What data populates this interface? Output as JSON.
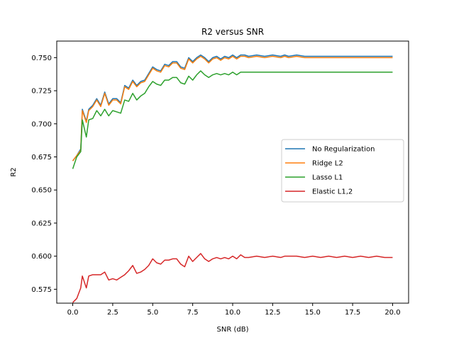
{
  "chart_data": {
    "type": "line",
    "title": "R2 versus SNR",
    "xlabel": "SNR (dB)",
    "ylabel": "R2",
    "xlim": [
      -1.0,
      21.0
    ],
    "ylim": [
      0.5645,
      0.7625
    ],
    "xticks": [
      0.0,
      2.5,
      5.0,
      7.5,
      10.0,
      12.5,
      15.0,
      17.5,
      20.0
    ],
    "xtick_labels": [
      "0.0",
      "2.5",
      "5.0",
      "7.5",
      "10.0",
      "12.5",
      "15.0",
      "17.5",
      "20.0"
    ],
    "yticks": [
      0.575,
      0.6,
      0.625,
      0.65,
      0.675,
      0.7,
      0.725,
      0.75
    ],
    "ytick_labels": [
      "0.575",
      "0.600",
      "0.625",
      "0.650",
      "0.675",
      "0.700",
      "0.725",
      "0.750"
    ],
    "legend_position": "center-right",
    "x": [
      0.0,
      0.25,
      0.5,
      0.6,
      0.85,
      1.0,
      1.25,
      1.5,
      1.75,
      2.0,
      2.25,
      2.5,
      2.75,
      3.0,
      3.25,
      3.5,
      3.75,
      4.0,
      4.25,
      4.5,
      4.75,
      5.0,
      5.25,
      5.5,
      5.75,
      6.0,
      6.25,
      6.5,
      6.75,
      7.0,
      7.25,
      7.5,
      7.75,
      8.0,
      8.25,
      8.5,
      8.75,
      9.0,
      9.25,
      9.5,
      9.75,
      10.0,
      10.25,
      10.5,
      10.75,
      11.0,
      11.5,
      12.0,
      12.5,
      13.0,
      13.25,
      13.5,
      14.0,
      14.5,
      15.0,
      15.5,
      16.0,
      16.5,
      17.0,
      17.5,
      18.0,
      18.5,
      19.0,
      19.5,
      20.0
    ],
    "series": [
      {
        "name": "No Regularization",
        "color": "#1f77b4",
        "values": [
          0.672,
          0.676,
          0.681,
          0.711,
          0.702,
          0.711,
          0.714,
          0.719,
          0.714,
          0.724,
          0.715,
          0.719,
          0.719,
          0.716,
          0.729,
          0.727,
          0.733,
          0.729,
          0.732,
          0.733,
          0.738,
          0.743,
          0.741,
          0.74,
          0.745,
          0.744,
          0.747,
          0.747,
          0.743,
          0.742,
          0.75,
          0.747,
          0.75,
          0.752,
          0.75,
          0.747,
          0.75,
          0.751,
          0.749,
          0.751,
          0.75,
          0.752,
          0.75,
          0.752,
          0.752,
          0.751,
          0.752,
          0.751,
          0.752,
          0.751,
          0.752,
          0.751,
          0.752,
          0.751,
          0.751,
          0.751,
          0.751,
          0.751,
          0.751,
          0.751,
          0.751,
          0.751,
          0.751,
          0.751,
          0.751
        ]
      },
      {
        "name": "Ridge L2",
        "color": "#ff7f0e",
        "values": [
          0.672,
          0.676,
          0.68,
          0.71,
          0.701,
          0.71,
          0.713,
          0.718,
          0.713,
          0.723,
          0.714,
          0.718,
          0.718,
          0.715,
          0.728,
          0.726,
          0.732,
          0.728,
          0.731,
          0.732,
          0.737,
          0.742,
          0.74,
          0.739,
          0.744,
          0.743,
          0.746,
          0.746,
          0.742,
          0.741,
          0.749,
          0.746,
          0.749,
          0.751,
          0.749,
          0.746,
          0.749,
          0.75,
          0.748,
          0.75,
          0.749,
          0.751,
          0.749,
          0.751,
          0.751,
          0.75,
          0.751,
          0.75,
          0.751,
          0.75,
          0.751,
          0.75,
          0.751,
          0.75,
          0.75,
          0.75,
          0.75,
          0.75,
          0.75,
          0.75,
          0.75,
          0.75,
          0.75,
          0.75,
          0.75
        ]
      },
      {
        "name": "Lasso L1",
        "color": "#2ca02c",
        "values": [
          0.666,
          0.675,
          0.679,
          0.703,
          0.69,
          0.703,
          0.704,
          0.71,
          0.706,
          0.711,
          0.706,
          0.71,
          0.709,
          0.708,
          0.718,
          0.717,
          0.723,
          0.718,
          0.721,
          0.723,
          0.728,
          0.732,
          0.73,
          0.729,
          0.733,
          0.733,
          0.735,
          0.735,
          0.731,
          0.73,
          0.736,
          0.733,
          0.737,
          0.74,
          0.737,
          0.735,
          0.737,
          0.738,
          0.737,
          0.738,
          0.737,
          0.739,
          0.737,
          0.739,
          0.739,
          0.739,
          0.739,
          0.739,
          0.739,
          0.739,
          0.739,
          0.739,
          0.739,
          0.739,
          0.739,
          0.739,
          0.739,
          0.739,
          0.739,
          0.739,
          0.739,
          0.739,
          0.739,
          0.739,
          0.739
        ]
      },
      {
        "name": "Elastic L1,2",
        "color": "#d62728",
        "values": [
          0.565,
          0.568,
          0.576,
          0.585,
          0.576,
          0.585,
          0.586,
          0.586,
          0.586,
          0.588,
          0.582,
          0.583,
          0.582,
          0.584,
          0.586,
          0.589,
          0.593,
          0.587,
          0.588,
          0.59,
          0.593,
          0.598,
          0.595,
          0.594,
          0.597,
          0.597,
          0.598,
          0.598,
          0.594,
          0.592,
          0.6,
          0.596,
          0.599,
          0.602,
          0.598,
          0.596,
          0.598,
          0.599,
          0.598,
          0.599,
          0.598,
          0.6,
          0.598,
          0.601,
          0.599,
          0.599,
          0.6,
          0.599,
          0.6,
          0.599,
          0.6,
          0.6,
          0.6,
          0.599,
          0.6,
          0.599,
          0.6,
          0.599,
          0.6,
          0.599,
          0.6,
          0.599,
          0.6,
          0.599,
          0.599
        ]
      }
    ]
  }
}
